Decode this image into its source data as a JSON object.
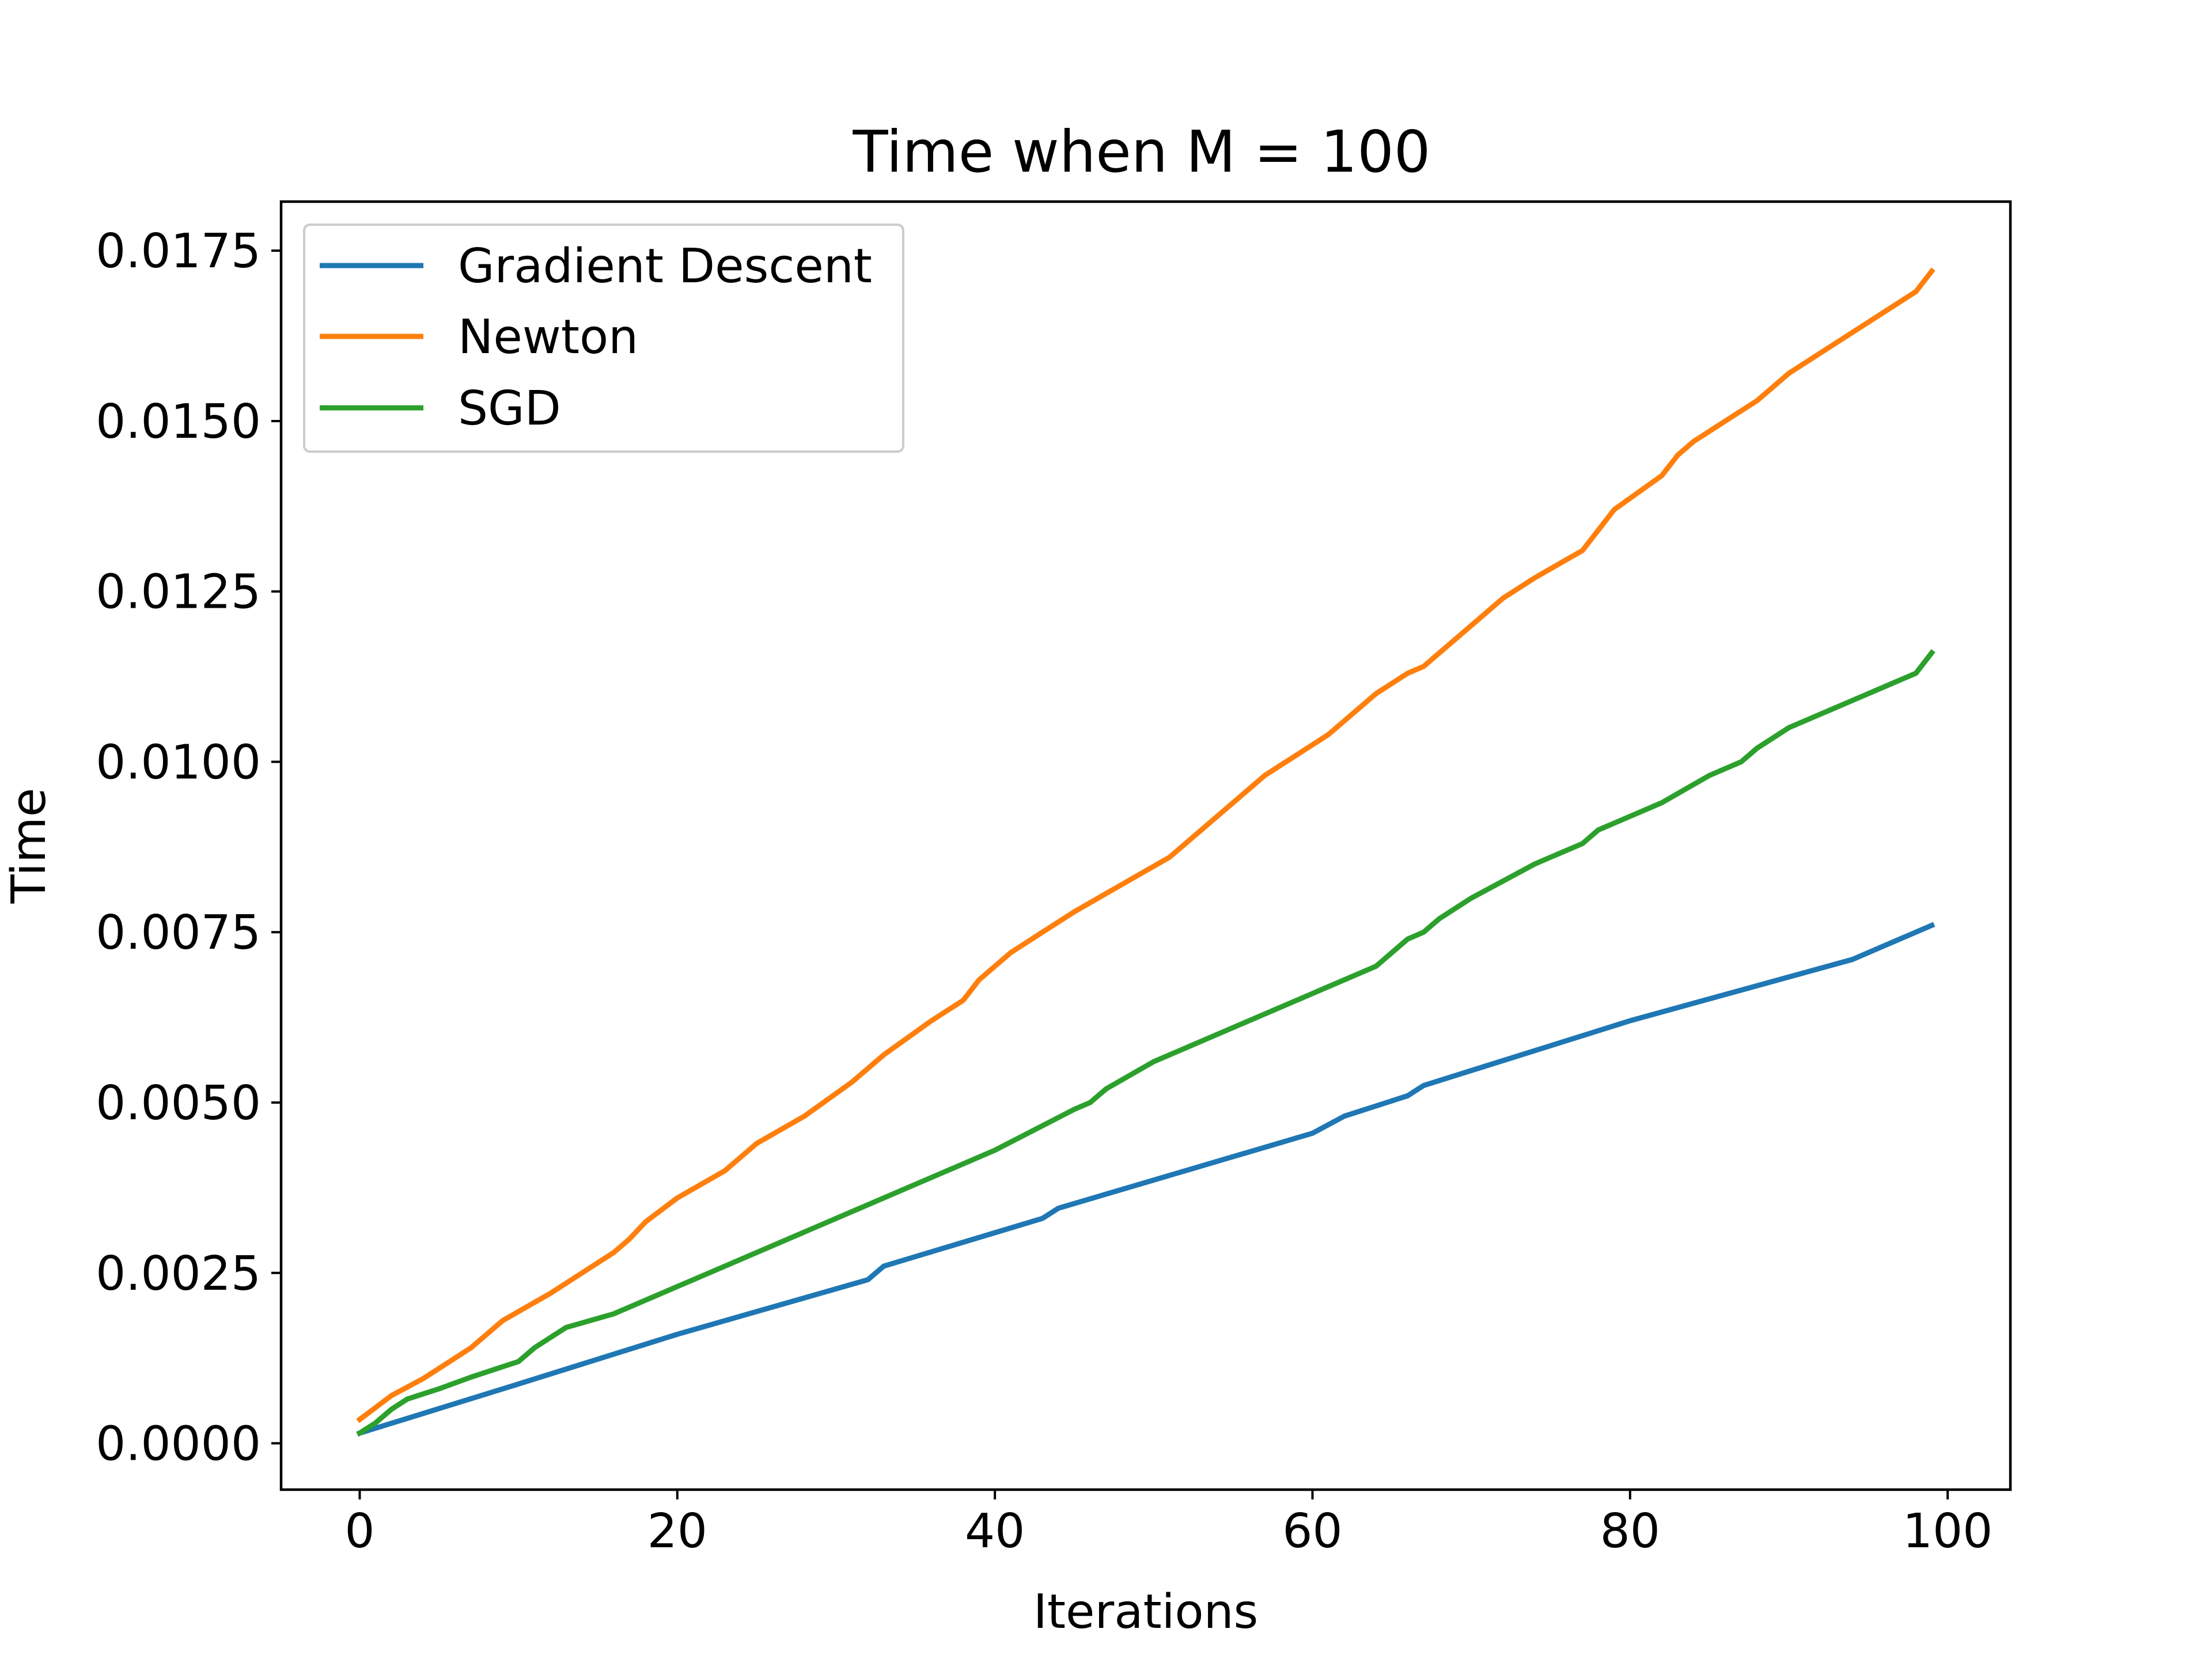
{
  "chart_data": {
    "type": "line",
    "title": "Time when M = 100",
    "xlabel": "Iterations",
    "ylabel": "Time",
    "xlim": [
      -4.95,
      103.95
    ],
    "ylim": [
      -0.00068,
      0.01822
    ],
    "xticks": [
      0,
      20,
      40,
      60,
      80,
      100
    ],
    "xtick_labels": [
      "0",
      "20",
      "40",
      "60",
      "80",
      "100"
    ],
    "yticks": [
      0.0,
      0.0025,
      0.005,
      0.0075,
      0.01,
      0.0125,
      0.015,
      0.0175
    ],
    "ytick_labels": [
      "0.0000",
      "0.0025",
      "0.0050",
      "0.0075",
      "0.0100",
      "0.0125",
      "0.0150",
      "0.0175"
    ],
    "grid": false,
    "legend_position": "top-left",
    "series": [
      {
        "name": "Gradient Descent",
        "color": "#1f77b4",
        "x": [
          0,
          10,
          20,
          32,
          33,
          43,
          44,
          60,
          62,
          66,
          67,
          80,
          94,
          96,
          99
        ],
        "y": [
          0.00015,
          0.00087,
          0.0016,
          0.0024,
          0.0026,
          0.0033,
          0.00345,
          0.00455,
          0.0048,
          0.0051,
          0.00525,
          0.0062,
          0.0071,
          0.0073,
          0.0076
        ]
      },
      {
        "name": "Newton",
        "color": "#ff7f0e",
        "x": [
          0,
          2,
          4,
          7,
          9,
          12,
          16,
          17,
          18,
          20,
          23,
          25,
          28,
          31,
          33,
          36,
          38,
          39,
          40,
          41,
          43,
          45,
          48,
          51,
          53,
          54,
          55,
          56,
          57,
          59,
          61,
          62,
          64,
          66,
          67,
          68,
          70,
          72,
          74,
          77,
          79,
          82,
          83,
          84,
          86,
          88,
          89,
          90,
          94,
          98,
          99
        ],
        "y": [
          0.00035,
          0.0007,
          0.00095,
          0.0014,
          0.0018,
          0.0022,
          0.0028,
          0.003,
          0.00325,
          0.0036,
          0.004,
          0.0044,
          0.0048,
          0.0053,
          0.0057,
          0.0062,
          0.0065,
          0.0068,
          0.007,
          0.0072,
          0.0075,
          0.0078,
          0.0082,
          0.0086,
          0.009,
          0.0092,
          0.0094,
          0.0096,
          0.0098,
          0.0101,
          0.0104,
          0.0106,
          0.011,
          0.0113,
          0.0114,
          0.0116,
          0.012,
          0.0124,
          0.0127,
          0.0131,
          0.0137,
          0.0142,
          0.0145,
          0.0147,
          0.015,
          0.0153,
          0.0155,
          0.0157,
          0.0163,
          0.0169,
          0.0172
        ]
      },
      {
        "name": "SGD",
        "color": "#2ca02c",
        "x": [
          0,
          1,
          2,
          3,
          5,
          7,
          10,
          11,
          13,
          16,
          20,
          21,
          26,
          27,
          30,
          33,
          37,
          38,
          40,
          45,
          46,
          47,
          50,
          52,
          56,
          60,
          64,
          65,
          66,
          67,
          68,
          70,
          74,
          76,
          77,
          78,
          80,
          82,
          85,
          87,
          88,
          90,
          94,
          98,
          99
        ],
        "y": [
          0.00015,
          0.0003,
          0.0005,
          0.00065,
          0.0008,
          0.00097,
          0.0012,
          0.0014,
          0.0017,
          0.0019,
          0.0023,
          0.0024,
          0.0029,
          0.003,
          0.0033,
          0.0036,
          0.004,
          0.0041,
          0.0043,
          0.0049,
          0.005,
          0.0052,
          0.0056,
          0.0058,
          0.0062,
          0.0066,
          0.007,
          0.0072,
          0.0074,
          0.0075,
          0.0077,
          0.008,
          0.0085,
          0.0087,
          0.0088,
          0.009,
          0.0092,
          0.0094,
          0.0098,
          0.01,
          0.0102,
          0.0105,
          0.0109,
          0.0113,
          0.0116
        ]
      }
    ]
  }
}
